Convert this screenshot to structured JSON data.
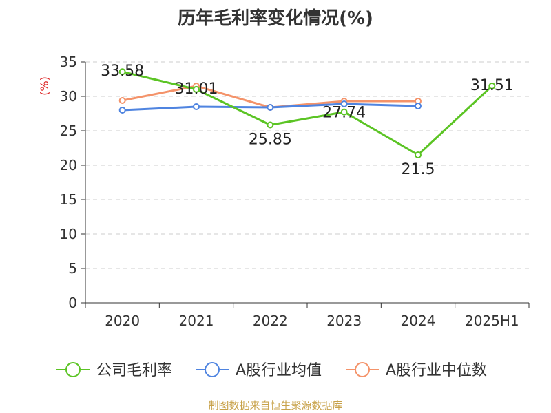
{
  "chart_data": {
    "type": "line",
    "title": "历年毛利率变化情况(%)",
    "ylabel": "(%)",
    "xlabel": "",
    "categories": [
      "2020",
      "2021",
      "2022",
      "2023",
      "2024",
      "2025H1"
    ],
    "ylim": [
      0,
      35
    ],
    "yticks": [
      0,
      5,
      10,
      15,
      20,
      25,
      30,
      35
    ],
    "grid": true,
    "legend_position": "bottom",
    "series": [
      {
        "name": "公司毛利率",
        "color": "#5bc424",
        "values": [
          33.58,
          31.01,
          25.85,
          27.74,
          21.5,
          31.51
        ],
        "labels": [
          "33.58",
          "31.01",
          "25.85",
          "27.74",
          "21.5",
          "31.51"
        ]
      },
      {
        "name": "A股行业均值",
        "color": "#4f84e0",
        "values": [
          28.0,
          28.5,
          28.4,
          28.9,
          28.6,
          null
        ]
      },
      {
        "name": "A股行业中位数",
        "color": "#f4936a",
        "values": [
          29.4,
          31.5,
          28.4,
          29.3,
          29.3,
          null
        ]
      }
    ]
  },
  "source": "制图数据来自恒生聚源数据库"
}
